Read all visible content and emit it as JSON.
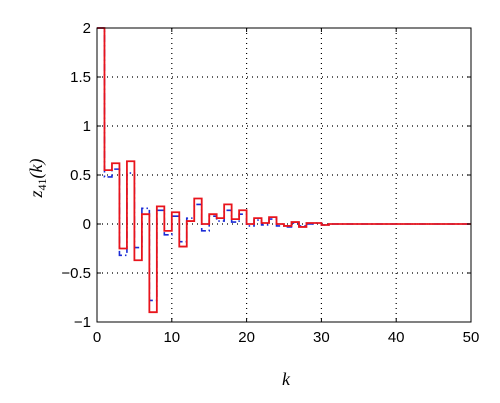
{
  "chart_data": {
    "type": "line",
    "title": "",
    "xlabel": "k",
    "ylabel": "z41(k)",
    "ylabel_parts": {
      "base": "z",
      "sub": "41",
      "arg": "(k)"
    },
    "xlim": [
      0,
      50
    ],
    "ylim": [
      -1,
      2
    ],
    "xticks": [
      0,
      10,
      20,
      30,
      40,
      50
    ],
    "yticks": [
      -1,
      -0.5,
      0,
      0.5,
      1,
      1.5,
      2
    ],
    "xtick_labels": [
      "0",
      "10",
      "20",
      "30",
      "40",
      "50"
    ],
    "ytick_labels": [
      "−1",
      "−0.5",
      "0",
      "0.5",
      "1",
      "1.5",
      "2"
    ],
    "grid": true,
    "series": [
      {
        "color": "#e8141c",
        "style": "solid-step",
        "x": [
          0,
          1,
          2,
          3,
          4,
          5,
          6,
          7,
          8,
          9,
          10,
          11,
          12,
          13,
          14,
          15,
          16,
          17,
          18,
          19,
          20,
          21,
          22,
          23,
          24,
          25,
          26,
          27,
          28,
          29,
          30,
          31,
          32,
          33,
          34,
          35,
          36,
          37,
          38,
          39,
          40,
          41,
          42,
          43,
          44,
          45,
          46,
          47,
          48,
          49
        ],
        "values": [
          2.0,
          0.55,
          0.62,
          -0.25,
          0.64,
          -0.37,
          0.1,
          -0.9,
          0.18,
          -0.07,
          0.12,
          -0.23,
          0.03,
          0.26,
          0.0,
          0.1,
          0.06,
          0.2,
          0.05,
          0.14,
          0.0,
          0.06,
          0.01,
          0.07,
          0.0,
          -0.02,
          0.02,
          -0.03,
          0.01,
          0.01,
          -0.01,
          0.0,
          0.0,
          0.0,
          0.0,
          0.0,
          0.0,
          0.0,
          0.0,
          0.0,
          0.0,
          0.0,
          0.0,
          0.0,
          0.0,
          0.0,
          0.0,
          0.0,
          0.0,
          0.0
        ]
      },
      {
        "color": "#1a2bd6",
        "style": "dashdot-step",
        "x": [
          0,
          1,
          2,
          3,
          4,
          5,
          6,
          7,
          8,
          9,
          10,
          11,
          12,
          13,
          14,
          15,
          16,
          17,
          18,
          19,
          20,
          21,
          22,
          23,
          24,
          25,
          26,
          27,
          28,
          29,
          30,
          31,
          32,
          33,
          34,
          35,
          36,
          37,
          38,
          39,
          40,
          41,
          42,
          43,
          44,
          45,
          46,
          47,
          48,
          49
        ],
        "values": [
          2.0,
          0.48,
          0.56,
          -0.32,
          0.52,
          -0.24,
          0.16,
          -0.78,
          0.14,
          -0.11,
          0.08,
          -0.18,
          0.06,
          0.2,
          -0.07,
          0.08,
          0.03,
          0.14,
          0.02,
          0.1,
          -0.02,
          0.04,
          -0.01,
          0.05,
          -0.02,
          -0.03,
          0.01,
          -0.02,
          0.0,
          0.01,
          -0.01,
          0.0,
          0.0,
          0.0,
          0.0,
          0.0,
          0.0,
          0.0,
          0.0,
          0.0,
          0.0,
          0.0,
          0.0,
          0.0,
          0.0,
          0.0,
          0.0,
          0.0,
          0.0,
          0.0
        ]
      }
    ]
  }
}
